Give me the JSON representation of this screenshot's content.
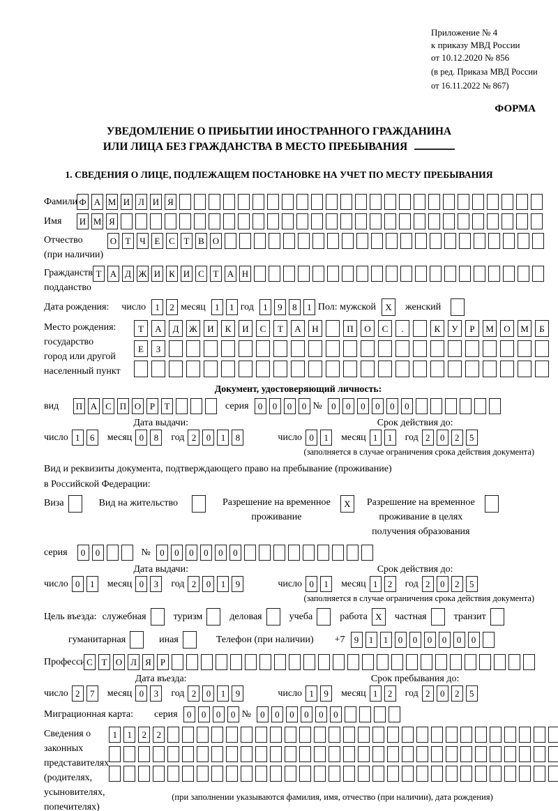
{
  "labels": {
    "day": "число",
    "month": "месяц",
    "year": "год",
    "series": "серия",
    "number": "№"
  },
  "header": {
    "appendix": [
      "Приложение № 4",
      "к приказу МВД России",
      "от 10.12.2020 № 856"
    ],
    "amendment": [
      "(в ред. Приказа МВД России",
      "от 16.11.2022 № 867)"
    ],
    "form_label": "ФОРМА",
    "title_line1": "УВЕДОМЛЕНИЕ О ПРИБЫТИИ ИНОСТРАННОГО ГРАЖДАНИНА",
    "title_line2": "ИЛИ ЛИЦА БЕЗ ГРАЖДАНСТВА В МЕСТО ПРЕБЫВАНИЯ"
  },
  "section1": {
    "heading": "1. СВЕДЕНИЯ О ЛИЦЕ, ПОДЛЕЖАЩЕМ ПОСТАНОВКЕ НА УЧЕТ ПО МЕСТУ ПРЕБЫВАНИЯ"
  },
  "fields": {
    "surname": {
      "label": "Фамилия",
      "boxes": {
        "count": 32,
        "value": "ФАМИЛИЯ"
      }
    },
    "given_name": {
      "label": "Имя",
      "boxes": {
        "count": 32,
        "value": "ИМЯ"
      }
    },
    "patronymic": {
      "label1": "Отчество",
      "label2": "(при наличии)",
      "boxes": {
        "count": 30,
        "value": "ОТЧЕСТВО"
      }
    },
    "citizenship": {
      "label1": "Гражданство,",
      "label2": "подданство",
      "boxes": {
        "count": 31,
        "value": "ТАДЖИКИСТАН"
      }
    },
    "birth_date": {
      "label": "Дата рождения:",
      "day": {
        "count": 2,
        "value": "12"
      },
      "month": {
        "count": 2,
        "value": "11"
      },
      "year": {
        "count": 4,
        "value": "1981"
      },
      "sex_label": "Пол: мужской",
      "male": {
        "count": 1,
        "value": "X"
      },
      "female_label": "женский",
      "female": {
        "count": 1,
        "value": ""
      }
    },
    "birth_place": {
      "label_lines": [
        "Место рождения:",
        "государство",
        "город или другой",
        "населенный пункт"
      ],
      "row1": {
        "count": 24,
        "value": "ТАДЖИКИСТАН ПОС. КУРМОМБ"
      },
      "row2": {
        "count": 24,
        "value": "ЕЗ"
      },
      "row3": {
        "count": 24,
        "value": ""
      }
    },
    "identity_doc": {
      "heading": "Документ, удостоверяющий личность:",
      "type_label": "вид",
      "type": {
        "count": 10,
        "value": "ПАСПОРТ"
      },
      "series": {
        "count": 4,
        "value": "0000"
      },
      "number": {
        "count": 12,
        "value": "000000"
      },
      "issue_header": "Дата выдачи:",
      "valid_header": "Срок действия до:",
      "issue": {
        "day": {
          "count": 2,
          "value": "16"
        },
        "month": {
          "count": 2,
          "value": "08"
        },
        "year": {
          "count": 4,
          "value": "2018"
        }
      },
      "valid": {
        "day": {
          "count": 2,
          "value": "01"
        },
        "month": {
          "count": 2,
          "value": "11"
        },
        "year": {
          "count": 4,
          "value": "2025"
        }
      },
      "note": "(заполняется в случае ограничения срока действия документа)"
    },
    "residence_doc": {
      "intro1": "Вид и реквизиты документа, подтверждающего право на пребывание (проживание)",
      "intro2": "в Российской Федерации:",
      "visa_label": "Виза",
      "visa": {
        "count": 1,
        "value": ""
      },
      "residence_permit_label": "Вид на жительство",
      "residence_permit": {
        "count": 1,
        "value": ""
      },
      "temp_permit_label1": "Разрешение на временное",
      "temp_permit_label2": "проживание",
      "temp_permit": {
        "count": 1,
        "value": "X"
      },
      "edu_permit_label1": "Разрешение на временное",
      "edu_permit_label2": "проживание в целях",
      "edu_permit_label3": "получения образования",
      "edu_permit": {
        "count": 1,
        "value": ""
      },
      "series": {
        "count": 4,
        "value": "00"
      },
      "number": {
        "count": 15,
        "value": "000000"
      },
      "issue_header": "Дата выдачи:",
      "valid_header": "Срок действия до:",
      "issue": {
        "day": {
          "count": 2,
          "value": "01"
        },
        "month": {
          "count": 2,
          "value": "03"
        },
        "year": {
          "count": 4,
          "value": "2019"
        }
      },
      "valid": {
        "day": {
          "count": 2,
          "value": "01"
        },
        "month": {
          "count": 2,
          "value": "12"
        },
        "year": {
          "count": 4,
          "value": "2025"
        }
      },
      "note": "(заполняется в случае ограничения срока действия документа)"
    },
    "visit_purpose": {
      "prefix": "Цель въезда:",
      "items": [
        {
          "label": "служебная",
          "box": {
            "count": 1,
            "value": ""
          }
        },
        {
          "label": "туризм",
          "box": {
            "count": 1,
            "value": ""
          }
        },
        {
          "label": "деловая",
          "box": {
            "count": 1,
            "value": ""
          }
        },
        {
          "label": "учеба",
          "box": {
            "count": 1,
            "value": ""
          }
        },
        {
          "label": "работа",
          "box": {
            "count": 1,
            "value": "X"
          }
        },
        {
          "label": "частная",
          "box": {
            "count": 1,
            "value": ""
          }
        },
        {
          "label": "транзит",
          "box": {
            "count": 1,
            "value": ""
          }
        }
      ],
      "items2": [
        {
          "label": "гуманитарная",
          "box": {
            "count": 1,
            "value": ""
          }
        },
        {
          "label": "иная",
          "box": {
            "count": 1,
            "value": ""
          }
        }
      ]
    },
    "phone": {
      "label": "Телефон (при наличии)",
      "prefix": "+7",
      "digits": {
        "count": 10,
        "value": "911000000"
      }
    },
    "profession": {
      "label": "Профессия",
      "boxes": {
        "count": 31,
        "value": "СТОЛЯР"
      }
    },
    "entry": {
      "issue_header": "Дата въезда:",
      "valid_header": "Срок пребывания до:",
      "issue": {
        "day": {
          "count": 2,
          "value": "27"
        },
        "month": {
          "count": 2,
          "value": "03"
        },
        "year": {
          "count": 4,
          "value": "2019"
        }
      },
      "valid": {
        "day": {
          "count": 2,
          "value": "19"
        },
        "month": {
          "count": 2,
          "value": "12"
        },
        "year": {
          "count": 4,
          "value": "2025"
        }
      }
    },
    "migration_card": {
      "label": "Миграционная карта:",
      "series": {
        "count": 4,
        "value": "0000"
      },
      "number": {
        "count": 10,
        "value": "000000"
      }
    },
    "representatives": {
      "label_lines": [
        "Сведения о",
        "законных",
        "представителях",
        "(родителях,",
        "усыновителях,",
        "попечителях)"
      ],
      "row1": {
        "count": 31,
        "value": "1122"
      },
      "row2": {
        "count": 31,
        "value": ""
      },
      "row3": {
        "count": 31,
        "value": ""
      },
      "note": "(при заполнении указываются фамилия, имя, отчество (при наличии), дата рождения)"
    }
  }
}
